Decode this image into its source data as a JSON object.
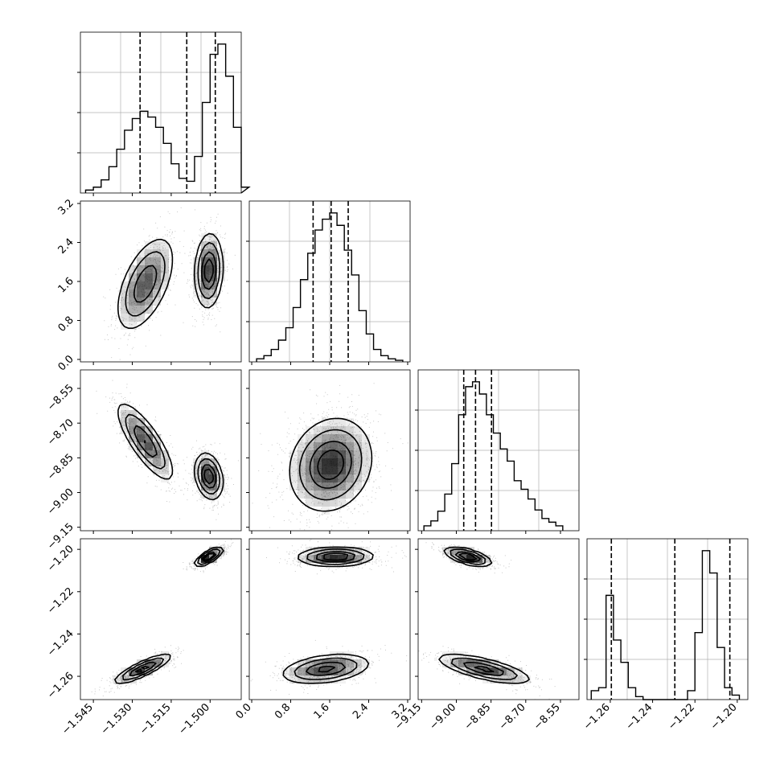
{
  "chart_data": {
    "type": "corner",
    "grid": true,
    "parameters": [
      {
        "ticks": [
          "−1.545",
          "−1.530",
          "−1.515",
          "−1.500"
        ],
        "range": [
          -1.55,
          -1.488
        ]
      },
      {
        "ticks": [
          "0.0",
          "0.8",
          "1.6",
          "2.4",
          "3.2"
        ],
        "range": [
          -0.05,
          3.25
        ]
      },
      {
        "ticks": [
          "−9.15",
          "−9.00",
          "−8.85",
          "−8.70",
          "−8.55"
        ],
        "range": [
          -9.165,
          -8.47
        ]
      },
      {
        "ticks": [
          "−1.26",
          "−1.24",
          "−1.22",
          "−1.20"
        ],
        "range": [
          -1.271,
          -1.195
        ]
      }
    ],
    "histograms": [
      {
        "param": 0,
        "bins": [
          -1.548,
          -1.545,
          -1.542,
          -1.539,
          -1.536,
          -1.533,
          -1.53,
          -1.527,
          -1.524,
          -1.521,
          -1.518,
          -1.515,
          -1.512,
          -1.509,
          -1.506,
          -1.503,
          -1.5,
          -1.497,
          -1.494,
          -1.491,
          -1.488
        ],
        "counts": [
          2,
          4,
          9,
          18,
          30,
          43,
          51,
          56,
          52,
          45,
          34,
          20,
          10,
          8,
          25,
          62,
          95,
          102,
          80,
          45,
          4
        ],
        "quantiles": [
          -1.527,
          -1.509,
          -1.498
        ]
      },
      {
        "param": 1,
        "bins": [
          0.1,
          0.25,
          0.4,
          0.55,
          0.7,
          0.85,
          1.0,
          1.15,
          1.3,
          1.45,
          1.6,
          1.75,
          1.9,
          2.05,
          2.2,
          2.35,
          2.5,
          2.65,
          2.8,
          2.95,
          3.1
        ],
        "counts": [
          2,
          4,
          8,
          14,
          22,
          35,
          53,
          70,
          85,
          92,
          96,
          88,
          72,
          56,
          33,
          18,
          8,
          4,
          2,
          1
        ],
        "quantiles": [
          1.26,
          1.63,
          1.98
        ]
      },
      {
        "param": 2,
        "bins": [
          -9.14,
          -9.11,
          -9.08,
          -9.05,
          -9.02,
          -8.99,
          -8.96,
          -8.93,
          -8.9,
          -8.87,
          -8.84,
          -8.81,
          -8.78,
          -8.75,
          -8.72,
          -8.69,
          -8.66,
          -8.63,
          -8.6,
          -8.57,
          -8.54
        ],
        "counts": [
          4,
          8,
          16,
          30,
          55,
          95,
          118,
          122,
          112,
          95,
          80,
          67,
          57,
          41,
          34,
          26,
          17,
          10,
          7,
          4
        ],
        "quantiles": [
          -8.968,
          -8.917,
          -8.848
        ]
      },
      {
        "param": 3,
        "bins": [
          -1.269,
          -1.2655,
          -1.262,
          -1.2585,
          -1.255,
          -1.2515,
          -1.248,
          -1.2445,
          -1.241,
          -1.2375,
          -1.234,
          -1.2305,
          -1.227,
          -1.2235,
          -1.22,
          -1.2165,
          -1.213,
          -1.2095,
          -1.206,
          -1.2025,
          -1.199
        ],
        "counts": [
          6,
          8,
          70,
          40,
          25,
          8,
          2,
          0,
          0,
          0,
          0,
          0,
          0,
          6,
          45,
          100,
          85,
          35,
          8,
          3
        ],
        "quantiles": [
          -1.2595,
          -1.2295,
          -1.2035
        ]
      }
    ],
    "scatter_pairs": [
      {
        "row": 1,
        "col": 0,
        "modes": [
          {
            "cx": -1.525,
            "cy": 1.55,
            "sx": 0.0055,
            "sy": 0.48,
            "rho": 0.55,
            "w": 0.45
          },
          {
            "cx": -1.5005,
            "cy": 1.82,
            "sx": 0.0027,
            "sy": 0.38,
            "rho": 0.1,
            "w": 0.55
          }
        ]
      },
      {
        "row": 2,
        "col": 0,
        "modes": [
          {
            "cx": -1.525,
            "cy": -8.78,
            "sx": 0.0055,
            "sy": 0.085,
            "rho": -0.8,
            "w": 0.45
          },
          {
            "cx": -1.5005,
            "cy": -8.93,
            "sx": 0.0027,
            "sy": 0.05,
            "rho": -0.25,
            "w": 0.55
          }
        ]
      },
      {
        "row": 2,
        "col": 1,
        "modes": [
          {
            "cx": 1.62,
            "cy": -8.88,
            "sx": 0.42,
            "sy": 0.1,
            "rho": 0.15,
            "w": 1.0
          }
        ]
      },
      {
        "row": 3,
        "col": 0,
        "modes": [
          {
            "cx": -1.526,
            "cy": -1.2565,
            "sx": 0.0055,
            "sy": 0.0035,
            "rho": 0.85,
            "w": 0.45
          },
          {
            "cx": -1.5005,
            "cy": -1.2035,
            "sx": 0.0027,
            "sy": 0.0022,
            "rho": 0.75,
            "w": 0.55
          }
        ]
      },
      {
        "row": 3,
        "col": 1,
        "modes": [
          {
            "cx": 1.52,
            "cy": -1.2565,
            "sx": 0.45,
            "sy": 0.0035,
            "rho": 0.35,
            "w": 0.45
          },
          {
            "cx": 1.72,
            "cy": -1.2035,
            "sx": 0.38,
            "sy": 0.0022,
            "rho": 0.05,
            "w": 0.55
          }
        ]
      },
      {
        "row": 3,
        "col": 2,
        "modes": [
          {
            "cx": -8.88,
            "cy": -1.2565,
            "sx": 0.1,
            "sy": 0.0035,
            "rho": -0.7,
            "w": 0.45
          },
          {
            "cx": -8.95,
            "cy": -1.2035,
            "sx": 0.05,
            "sy": 0.0022,
            "rho": -0.6,
            "w": 0.55
          }
        ]
      }
    ],
    "contour_levels": [
      0.135,
      0.32,
      0.6,
      0.82
    ],
    "colors": {
      "line": "#000000",
      "grid": "#b0b0b0",
      "points": "#000000",
      "density": "#000000"
    }
  }
}
